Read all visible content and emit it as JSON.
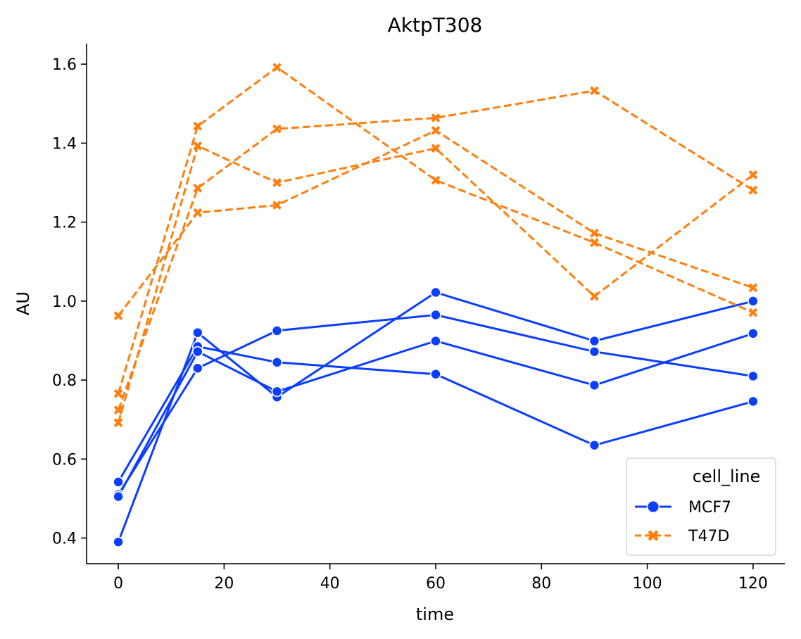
{
  "chart_data": {
    "type": "line",
    "title": "AktpT308",
    "xlabel": "time",
    "ylabel": "AU",
    "xlim": [
      -6,
      126
    ],
    "ylim": [
      0.335,
      1.652
    ],
    "xticks": [
      0,
      20,
      40,
      60,
      80,
      100,
      120
    ],
    "yticks": [
      0.4,
      0.6,
      0.8,
      1.0,
      1.2,
      1.4,
      1.6
    ],
    "ytick_labels": [
      "0.4",
      "0.6",
      "0.8",
      "1.0",
      "1.2",
      "1.4",
      "1.6"
    ],
    "grid": false,
    "legend": {
      "title": "cell_line",
      "placement": "bottom-right",
      "entries": [
        "MCF7",
        "T47D"
      ]
    },
    "x": [
      0,
      15,
      30,
      60,
      90,
      120
    ],
    "groups": [
      {
        "name": "MCF7",
        "color": "#0b3eff",
        "marker": "circle",
        "dash": "solid",
        "series": [
          {
            "values": [
              0.39,
              0.92,
              0.757,
              1.022,
              0.899,
              1.0
            ]
          },
          {
            "values": [
              0.51,
              0.83,
              0.925,
              0.965,
              0.872,
              0.81
            ]
          },
          {
            "values": [
              0.542,
              0.885,
              0.845,
              0.815,
              0.635,
              0.746
            ]
          },
          {
            "values": [
              0.505,
              0.872,
              0.771,
              0.899,
              0.787,
              0.918
            ]
          }
        ]
      },
      {
        "name": "T47D",
        "color": "#ff7f0e",
        "marker": "x",
        "dash": "dashed",
        "series": [
          {
            "values": [
              0.963,
              1.224,
              1.243,
              1.432,
              1.172,
              1.034
            ]
          },
          {
            "values": [
              0.766,
              1.443,
              1.592,
              1.306,
              1.148,
              0.971
            ]
          },
          {
            "values": [
              0.692,
              1.393,
              1.3,
              1.387,
              1.012,
              1.32
            ]
          },
          {
            "values": [
              0.724,
              1.286,
              1.436,
              1.464,
              1.533,
              1.281
            ]
          }
        ]
      }
    ]
  }
}
